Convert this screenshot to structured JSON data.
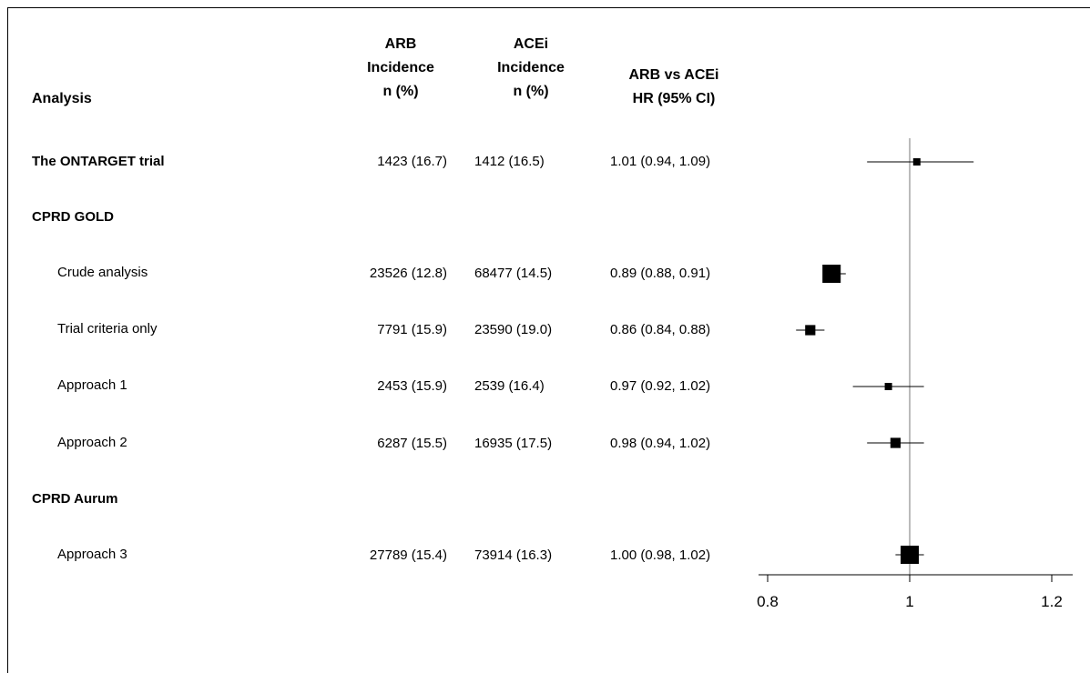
{
  "headers": {
    "analysis": "Analysis",
    "arb": [
      "ARB",
      "Incidence",
      "n (%)"
    ],
    "acei": [
      "ACEi",
      "Incidence",
      "n (%)"
    ],
    "hr": [
      "ARB vs ACEi",
      "HR (95% CI)"
    ]
  },
  "rows": [
    {
      "label": "The ONTARGET trial",
      "kind": "group",
      "arb": "1423 (16.7)",
      "acei": "1412 (16.5)",
      "hr_text": "1.01 (0.94, 1.09)",
      "hr": 1.01,
      "lo": 0.94,
      "hi": 1.09,
      "weight": 0.25
    },
    {
      "label": "CPRD GOLD",
      "kind": "group",
      "arb": "",
      "acei": "",
      "hr_text": ""
    },
    {
      "label": "Crude analysis",
      "kind": "sub",
      "arb": "23526 (12.8)",
      "acei": "68477 (14.5)",
      "hr_text": "0.89 (0.88, 0.91)",
      "hr": 0.89,
      "lo": 0.88,
      "hi": 0.91,
      "weight": 1.0
    },
    {
      "label": "Trial criteria only",
      "kind": "sub",
      "arb": "7791 (15.9)",
      "acei": "23590 (19.0)",
      "hr_text": "0.86 (0.84, 0.88)",
      "hr": 0.86,
      "lo": 0.84,
      "hi": 0.88,
      "weight": 0.45
    },
    {
      "label": "Approach 1",
      "kind": "sub",
      "arb": "2453 (15.9)",
      "acei": "2539 (16.4)",
      "hr_text": "0.97 (0.92, 1.02)",
      "hr": 0.97,
      "lo": 0.92,
      "hi": 1.02,
      "weight": 0.25
    },
    {
      "label": "Approach 2",
      "kind": "sub",
      "arb": "6287 (15.5)",
      "acei": "16935 (17.5)",
      "hr_text": "0.98 (0.94, 1.02)",
      "hr": 0.98,
      "lo": 0.94,
      "hi": 1.02,
      "weight": 0.45
    },
    {
      "label": "CPRD Aurum",
      "kind": "group",
      "arb": "",
      "acei": "",
      "hr_text": ""
    },
    {
      "label": "Approach 3",
      "kind": "sub",
      "arb": "27789 (15.4)",
      "acei": "73914 (16.3)",
      "hr_text": "1.00 (0.98, 1.02)",
      "hr": 1.0,
      "lo": 0.98,
      "hi": 1.02,
      "weight": 1.0
    }
  ],
  "chart_data": {
    "type": "scatter",
    "subtype": "forest",
    "reference_line": 1,
    "xlim": [
      0.8,
      1.2
    ],
    "xticks": [
      0.8,
      1,
      1.2
    ],
    "tick_labels": [
      "0.8",
      "1",
      "1.2"
    ],
    "categories": [
      "The ONTARGET trial",
      "Crude analysis",
      "Trial criteria only",
      "Approach 1",
      "Approach 2",
      "Approach 3"
    ],
    "series": [
      {
        "values": [
          1.01,
          0.89,
          0.86,
          0.97,
          0.98,
          1.0
        ],
        "ci_lower": [
          0.94,
          0.88,
          0.84,
          0.92,
          0.94,
          0.98
        ],
        "ci_upper": [
          1.09,
          0.91,
          0.88,
          1.02,
          1.02,
          1.02
        ]
      }
    ],
    "grid": false,
    "legend": "none"
  }
}
